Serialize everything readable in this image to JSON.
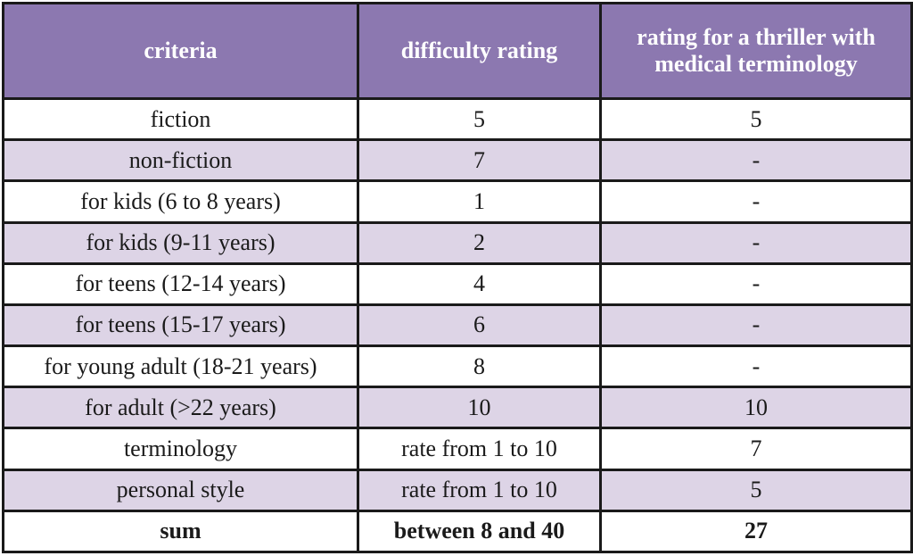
{
  "table": {
    "headers": [
      "criteria",
      "difficulty rating",
      "rating for a thriller with medical terminology"
    ],
    "rows": [
      [
        "fiction",
        "5",
        "5"
      ],
      [
        "non-fiction",
        "7",
        "-"
      ],
      [
        "for kids (6 to 8 years)",
        "1",
        "-"
      ],
      [
        "for kids (9-11 years)",
        "2",
        "-"
      ],
      [
        "for teens (12-14 years)",
        "4",
        "-"
      ],
      [
        "for teens (15-17 years)",
        "6",
        "-"
      ],
      [
        "for young adult (18-21 years)",
        "8",
        "-"
      ],
      [
        "for adult (>22 years)",
        "10",
        "10"
      ],
      [
        "terminology",
        "rate from 1 to 10",
        "7"
      ],
      [
        "personal style",
        "rate from 1 to 10",
        "5"
      ]
    ],
    "sum_row": [
      "sum",
      "between 8 and 40",
      "27"
    ]
  },
  "colors": {
    "header_bg": "#8c78b0",
    "stripe_bg": "#ddd4e6",
    "border": "#1a1a1a"
  }
}
